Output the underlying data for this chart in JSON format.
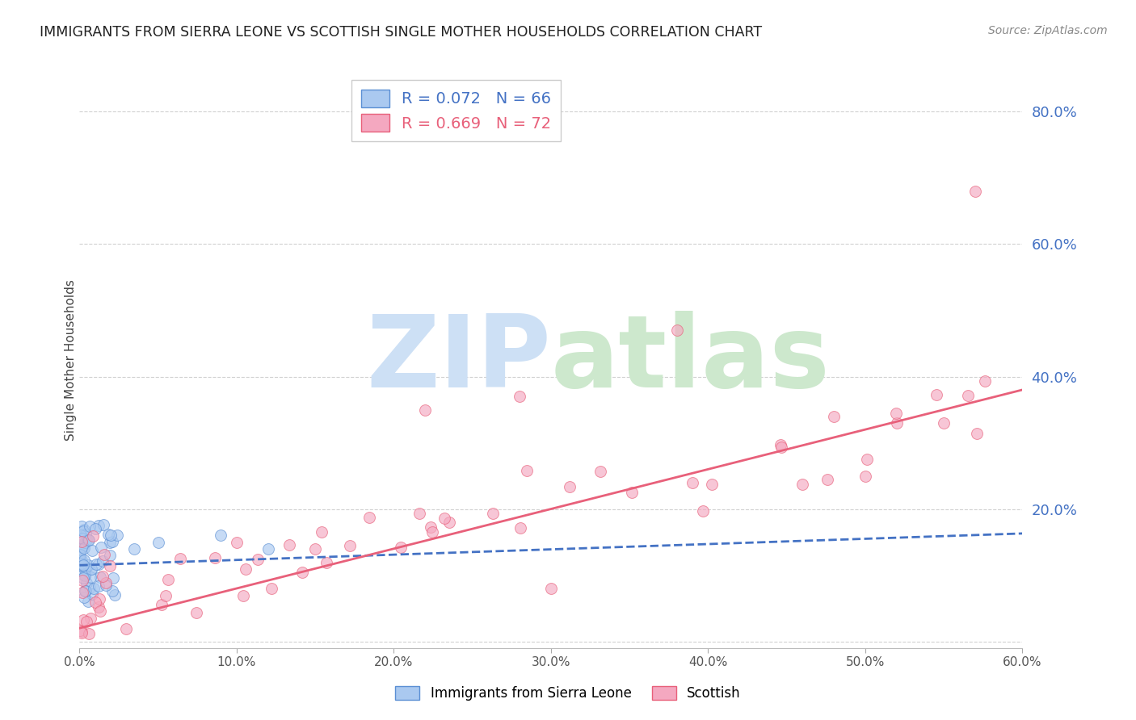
{
  "title": "IMMIGRANTS FROM SIERRA LEONE VS SCOTTISH SINGLE MOTHER HOUSEHOLDS CORRELATION CHART",
  "source": "Source: ZipAtlas.com",
  "ylabel": "Single Mother Households",
  "xlim": [
    0.0,
    0.6
  ],
  "ylim": [
    -0.01,
    0.86
  ],
  "yticks": [
    0.0,
    0.2,
    0.4,
    0.6,
    0.8
  ],
  "xticks": [
    0.0,
    0.1,
    0.2,
    0.3,
    0.4,
    0.5,
    0.6
  ],
  "blue_label": "Immigrants from Sierra Leone",
  "pink_label": "Scottish",
  "blue_R": 0.072,
  "blue_N": 66,
  "pink_R": 0.669,
  "pink_N": 72,
  "blue_scatter_color": "#aac9f0",
  "blue_scatter_edge": "#5b8fd4",
  "pink_scatter_color": "#f4a8c0",
  "pink_scatter_edge": "#e8607a",
  "blue_line_color": "#4472c4",
  "pink_line_color": "#e8607a",
  "background_color": "#ffffff",
  "grid_color": "#cccccc",
  "axis_tick_color": "#4472c4",
  "title_color": "#222222",
  "source_color": "#888888"
}
